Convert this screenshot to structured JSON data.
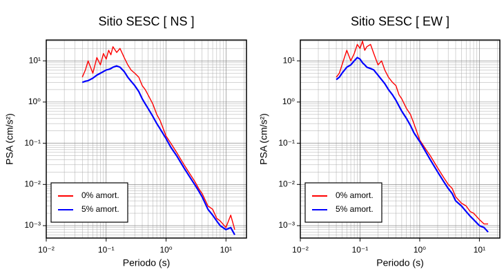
{
  "chart_data": [
    {
      "type": "line",
      "title": "Sitio SESC [ NS ]",
      "xlabel": "Periodo (s)",
      "ylabel": "PSA (cm/s²)",
      "xlog": true,
      "ylog": true,
      "grid": true,
      "legend": "lower left",
      "xlim": [
        0.01,
        22
      ],
      "ylim": [
        0.0005,
        32
      ],
      "xticks": [
        {
          "value": 0.01,
          "label": "10⁻²"
        },
        {
          "value": 0.1,
          "label": "10⁻¹"
        },
        {
          "value": 1,
          "label": "10⁰"
        },
        {
          "value": 10,
          "label": "10¹"
        }
      ],
      "yticks": [
        {
          "value": 0.001,
          "label": "10⁻³"
        },
        {
          "value": 0.01,
          "label": "10⁻²"
        },
        {
          "value": 0.1,
          "label": "10⁻¹"
        },
        {
          "value": 1,
          "label": "10⁰"
        },
        {
          "value": 10,
          "label": "10¹"
        }
      ],
      "x": [
        0.04,
        0.045,
        0.05,
        0.06,
        0.07,
        0.08,
        0.09,
        0.1,
        0.11,
        0.12,
        0.13,
        0.15,
        0.17,
        0.2,
        0.23,
        0.26,
        0.3,
        0.35,
        0.4,
        0.45,
        0.5,
        0.6,
        0.7,
        0.8,
        1,
        1.2,
        1.5,
        2,
        2.5,
        3,
        3.5,
        4,
        5,
        6,
        7,
        8,
        10,
        12,
        14
      ],
      "series": [
        {
          "name": "0% amort.",
          "color": "#ff0000",
          "values": [
            4,
            6,
            10,
            5,
            12,
            8,
            15,
            11,
            18,
            14,
            22,
            16,
            20,
            12,
            8,
            6,
            5,
            4,
            2.5,
            2.0,
            1.5,
            0.9,
            0.5,
            0.35,
            0.15,
            0.1,
            0.06,
            0.03,
            0.018,
            0.012,
            0.008,
            0.006,
            0.003,
            0.0025,
            0.0015,
            0.0013,
            0.0009,
            0.0018,
            0.0008
          ]
        },
        {
          "name": "5% amort.",
          "color": "#0000ff",
          "values": [
            3,
            3.2,
            3.3,
            3.8,
            4.5,
            5,
            5.5,
            6,
            6.2,
            6.5,
            7,
            7.5,
            7,
            5.5,
            4,
            3.2,
            2.5,
            1.8,
            1.2,
            0.9,
            0.7,
            0.45,
            0.3,
            0.22,
            0.13,
            0.08,
            0.05,
            0.025,
            0.015,
            0.01,
            0.007,
            0.005,
            0.0025,
            0.0018,
            0.0013,
            0.001,
            0.0008,
            0.0009,
            0.0006
          ]
        }
      ]
    },
    {
      "type": "line",
      "title": "Sitio SESC [ EW ]",
      "xlabel": "Periodo (s)",
      "ylabel": "PSA (cm/s²)",
      "xlog": true,
      "ylog": true,
      "grid": true,
      "legend": "lower left",
      "xlim": [
        0.01,
        22
      ],
      "ylim": [
        0.0005,
        32
      ],
      "xticks": [
        {
          "value": 0.01,
          "label": "10⁻²"
        },
        {
          "value": 0.1,
          "label": "10⁻¹"
        },
        {
          "value": 1,
          "label": "10⁰"
        },
        {
          "value": 10,
          "label": "10¹"
        }
      ],
      "yticks": [
        {
          "value": 0.001,
          "label": "10⁻³"
        },
        {
          "value": 0.01,
          "label": "10⁻²"
        },
        {
          "value": 0.1,
          "label": "10⁻¹"
        },
        {
          "value": 1,
          "label": "10⁰"
        },
        {
          "value": 10,
          "label": "10¹"
        }
      ],
      "x": [
        0.04,
        0.045,
        0.05,
        0.06,
        0.07,
        0.08,
        0.09,
        0.1,
        0.11,
        0.12,
        0.13,
        0.15,
        0.17,
        0.2,
        0.23,
        0.26,
        0.3,
        0.35,
        0.4,
        0.45,
        0.5,
        0.6,
        0.7,
        0.8,
        1,
        1.2,
        1.5,
        2,
        2.5,
        3,
        3.5,
        4,
        5,
        6,
        7,
        8,
        10,
        12,
        14
      ],
      "series": [
        {
          "name": "0% amort.",
          "color": "#ff0000",
          "values": [
            4,
            5,
            8,
            18,
            10,
            15,
            25,
            20,
            30,
            18,
            22,
            25,
            15,
            8,
            10,
            6,
            4,
            3,
            2.5,
            1.5,
            1.2,
            0.7,
            0.5,
            0.3,
            0.12,
            0.08,
            0.05,
            0.025,
            0.015,
            0.01,
            0.008,
            0.005,
            0.0035,
            0.003,
            0.0022,
            0.002,
            0.0014,
            0.0011,
            0.0011
          ]
        },
        {
          "name": "5% amort.",
          "color": "#0000ff",
          "values": [
            3.5,
            4,
            5,
            7,
            8,
            10,
            12,
            11,
            9,
            8,
            7,
            6.5,
            6,
            4.5,
            3.5,
            2.8,
            2,
            1.5,
            1.1,
            0.8,
            0.6,
            0.4,
            0.27,
            0.18,
            0.11,
            0.07,
            0.04,
            0.02,
            0.012,
            0.008,
            0.006,
            0.004,
            0.003,
            0.0022,
            0.0017,
            0.0014,
            0.001,
            0.0009,
            0.0007
          ]
        }
      ]
    }
  ]
}
